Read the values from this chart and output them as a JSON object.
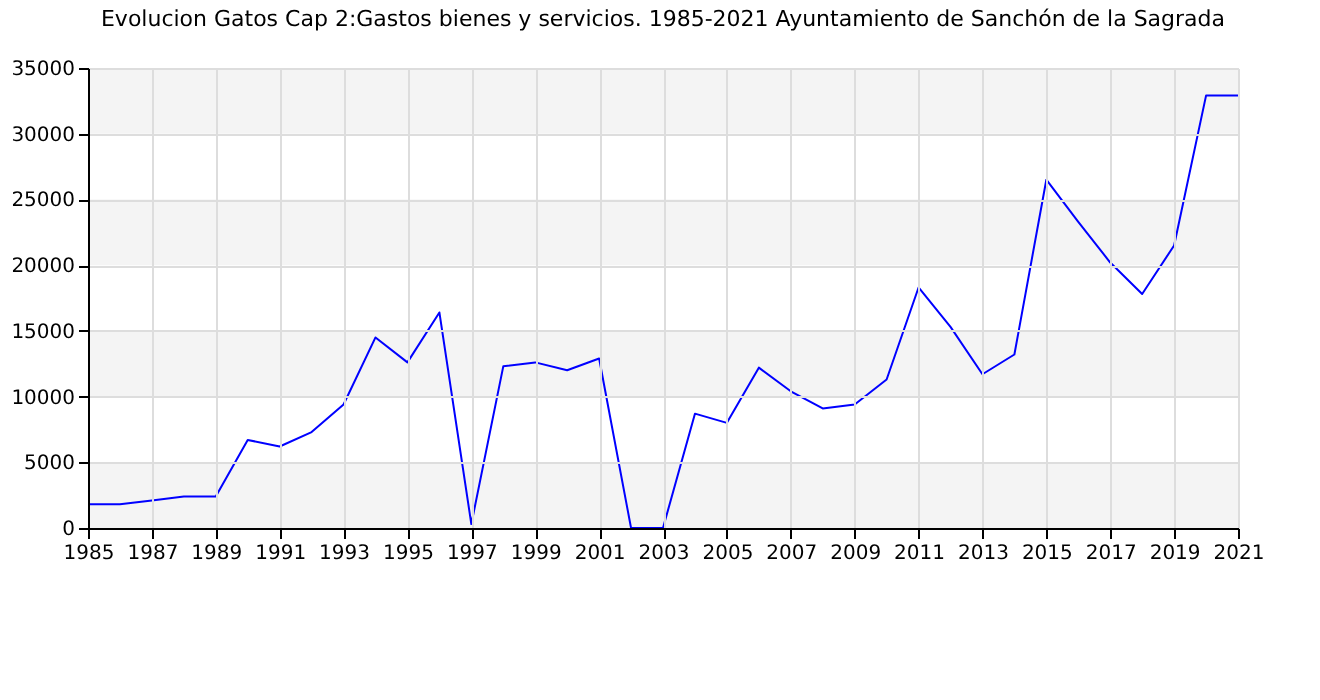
{
  "chart_data": {
    "type": "line",
    "title": "Evolucion Gatos Cap 2:Gastos bienes y servicios. 1985-2021 Ayuntamiento de Sanchón de la Sagrada",
    "x": [
      1985,
      1986,
      1987,
      1988,
      1989,
      1990,
      1991,
      1992,
      1993,
      1994,
      1995,
      1996,
      1997,
      1998,
      1999,
      2000,
      2001,
      2002,
      2003,
      2004,
      2005,
      2006,
      2007,
      2008,
      2009,
      2010,
      2011,
      2012,
      2013,
      2014,
      2015,
      2016,
      2017,
      2018,
      2019,
      2020,
      2021
    ],
    "series": [
      {
        "color": "#0000ff",
        "values": [
          1800,
          1800,
          2100,
          2400,
          2400,
          6700,
          6200,
          7300,
          9400,
          14500,
          12600,
          16400,
          300,
          12300,
          12600,
          12000,
          12900,
          0,
          0,
          8700,
          8000,
          12200,
          10400,
          9100,
          9400,
          11300,
          18300,
          15300,
          11700,
          13200,
          26500,
          23300,
          20200,
          17800,
          21500,
          32900,
          32900
        ]
      }
    ],
    "xlim": [
      1985,
      2021
    ],
    "xticks": [
      1985,
      1987,
      1989,
      1991,
      1993,
      1995,
      1997,
      1999,
      2001,
      2003,
      2005,
      2007,
      2009,
      2011,
      2013,
      2015,
      2017,
      2019,
      2021
    ],
    "ylim": [
      0,
      35000
    ],
    "yticks": [
      0,
      5000,
      10000,
      15000,
      20000,
      25000,
      30000,
      35000
    ],
    "grid": true,
    "marker": "none",
    "line_style": "solid",
    "bands": [
      {
        "axis": "y",
        "from": 0,
        "to": 5000,
        "color": "#f4f4f4"
      },
      {
        "axis": "y",
        "from": 10000,
        "to": 15000,
        "color": "#f4f4f4"
      },
      {
        "axis": "y",
        "from": 20000,
        "to": 25000,
        "color": "#f4f4f4"
      },
      {
        "axis": "y",
        "from": 30000,
        "to": 35000,
        "color": "#f4f4f4"
      }
    ]
  }
}
